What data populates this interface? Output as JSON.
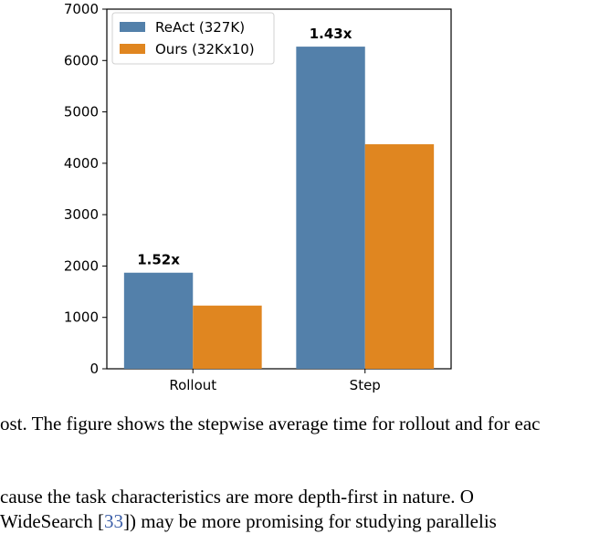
{
  "chart_data": {
    "type": "bar",
    "categories": [
      "Rollout",
      "Step"
    ],
    "series": [
      {
        "name": "ReAct (327K)",
        "color": "#5380aa",
        "values": [
          1870,
          6270
        ]
      },
      {
        "name": "Ours (32Kx10)",
        "color": "#e08620",
        "values": [
          1230,
          4370
        ]
      }
    ],
    "annotations": [
      "1.52x",
      "1.43x"
    ],
    "ylim": [
      0,
      7000
    ],
    "yticks": [
      0,
      1000,
      2000,
      3000,
      4000,
      5000,
      6000,
      7000
    ],
    "grid": false,
    "legend": "upper left"
  },
  "caption": "ost. The figure shows the stepwise average time for rollout and for eac",
  "body": [
    "cause the task characteristics are more depth-first in nature. O",
    {
      "before": "WideSearch [",
      "cite": "33",
      "after": "]) may be more promising for studying parallelis"
    }
  ]
}
